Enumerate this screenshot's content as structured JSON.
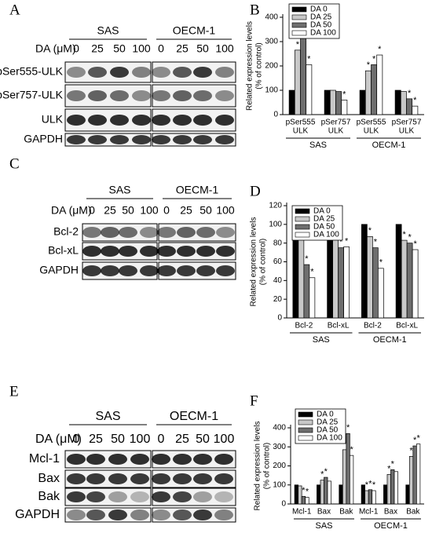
{
  "blots": [
    {
      "label": "A",
      "groups": [
        "SAS",
        "OECM-1"
      ],
      "dose_label": "DA (μM)",
      "doses": [
        "0",
        "25",
        "50",
        "100"
      ],
      "rows": [
        "pSer555-ULK",
        "pSer757-ULK",
        "ULK",
        "GAPDH"
      ]
    },
    {
      "label": "C",
      "groups": [
        "SAS",
        "OECM-1"
      ],
      "dose_label": "DA (μM)",
      "doses": [
        "0",
        "25",
        "50",
        "100"
      ],
      "rows": [
        "Bcl-2",
        "Bcl-xL",
        "GAPDH"
      ]
    },
    {
      "label": "E",
      "groups": [
        "SAS",
        "OECM-1"
      ],
      "dose_label": "DA (μM)",
      "doses": [
        "0",
        "25",
        "50",
        "100"
      ],
      "rows": [
        "Mcl-1",
        "Bax",
        "Bak",
        "GAPDH"
      ]
    }
  ],
  "chart_data": [
    {
      "type": "bar",
      "panel_label": "B",
      "ylabel": [
        "Related expression levels",
        "(% of control)"
      ],
      "categories": [
        [
          "pSer555",
          "ULK"
        ],
        [
          "pSer757",
          "ULK"
        ],
        [
          "pSer555",
          "ULK"
        ],
        [
          "pSer757",
          "ULK"
        ]
      ],
      "group_labels": [
        "SAS",
        "OECM-1"
      ],
      "ylim": [
        0,
        400
      ],
      "yticks": [
        0,
        100,
        200,
        300,
        400
      ],
      "series": [
        {
          "name": "DA 0",
          "color": "#000000",
          "values": [
            100,
            100,
            100,
            100
          ],
          "significance": [
            null,
            null,
            null,
            null
          ]
        },
        {
          "name": "DA 25",
          "color": "#c8c8c8",
          "values": [
            265,
            100,
            180,
            95
          ],
          "significance": [
            "*",
            null,
            "*",
            null
          ]
        },
        {
          "name": "DA 50",
          "color": "#6e6e6e",
          "values": [
            380,
            95,
            205,
            65
          ],
          "significance": [
            "*",
            null,
            "*",
            "*"
          ]
        },
        {
          "name": "DA 100",
          "color": "#ffffff",
          "values": [
            205,
            60,
            245,
            35
          ],
          "significance": [
            "*",
            "*",
            "*",
            "*"
          ]
        }
      ]
    },
    {
      "type": "bar",
      "panel_label": "D",
      "ylabel": [
        "Related expression levels",
        "(% of control)"
      ],
      "categories": [
        [
          "Bcl-2"
        ],
        [
          "Bcl-xL"
        ],
        [
          "Bcl-2"
        ],
        [
          "Bcl-xL"
        ]
      ],
      "group_labels": [
        "SAS",
        "OECM-1"
      ],
      "ylim": [
        0,
        120
      ],
      "yticks": [
        0,
        20,
        40,
        60,
        80,
        100,
        120
      ],
      "series": [
        {
          "name": "DA 0",
          "color": "#000000",
          "values": [
            100,
            100,
            100,
            100
          ],
          "significance": [
            null,
            null,
            null,
            null
          ]
        },
        {
          "name": "DA 25",
          "color": "#c8c8c8",
          "values": [
            95,
            90,
            87,
            83
          ],
          "significance": [
            null,
            "*",
            "*",
            "*"
          ]
        },
        {
          "name": "DA 50",
          "color": "#6e6e6e",
          "values": [
            57,
            75,
            75,
            80
          ],
          "significance": [
            "*",
            "*",
            "*",
            "*"
          ]
        },
        {
          "name": "DA 100",
          "color": "#ffffff",
          "values": [
            43,
            76,
            53,
            73
          ],
          "significance": [
            "*",
            "*",
            "*",
            "*"
          ]
        }
      ]
    },
    {
      "type": "bar",
      "panel_label": "F",
      "ylabel": [
        "Related expression levels",
        "(% of control)"
      ],
      "categories": [
        [
          "Mcl-1"
        ],
        [
          "Bax"
        ],
        [
          "Bak"
        ],
        [
          "Mcl-1"
        ],
        [
          "Bax"
        ],
        [
          "Bak"
        ]
      ],
      "group_labels": [
        "SAS",
        "OECM-1"
      ],
      "ylim": [
        0,
        400
      ],
      "yticks": [
        0,
        100,
        200,
        300,
        400
      ],
      "series": [
        {
          "name": "DA 0",
          "color": "#000000",
          "values": [
            100,
            100,
            100,
            100,
            100,
            100
          ],
          "significance": [
            null,
            null,
            null,
            null,
            null,
            null
          ]
        },
        {
          "name": "DA 25",
          "color": "#c8c8c8",
          "values": [
            95,
            125,
            285,
            70,
            155,
            250
          ],
          "significance": [
            null,
            "*",
            "*",
            "*",
            "*",
            "*"
          ]
        },
        {
          "name": "DA 50",
          "color": "#6e6e6e",
          "values": [
            40,
            140,
            370,
            75,
            180,
            305
          ],
          "significance": [
            "*",
            "*",
            "*",
            "*",
            "*",
            "*"
          ]
        },
        {
          "name": "DA 100",
          "color": "#ffffff",
          "values": [
            35,
            120,
            255,
            70,
            170,
            315
          ],
          "significance": [
            "*",
            null,
            "*",
            "*",
            null,
            "*"
          ]
        }
      ]
    }
  ]
}
